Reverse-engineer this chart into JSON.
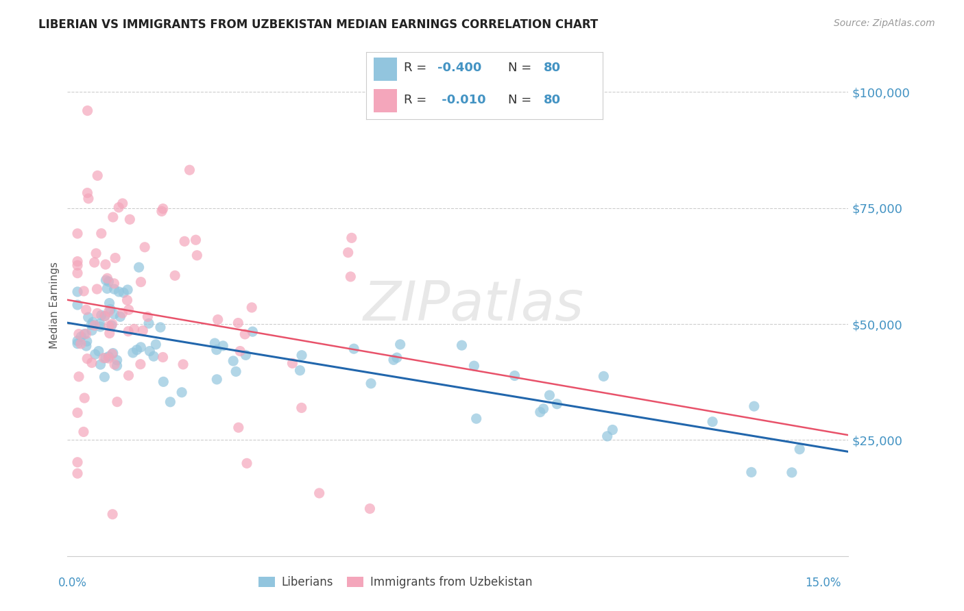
{
  "title": "LIBERIAN VS IMMIGRANTS FROM UZBEKISTAN MEDIAN EARNINGS CORRELATION CHART",
  "source": "Source: ZipAtlas.com",
  "ylabel": "Median Earnings",
  "yticks": [
    25000,
    50000,
    75000,
    100000
  ],
  "ytick_labels": [
    "$25,000",
    "$50,000",
    "$75,000",
    "$100,000"
  ],
  "xlim": [
    -0.001,
    0.155
  ],
  "ylim": [
    0,
    108000
  ],
  "color_blue": "#92c5de",
  "color_pink": "#f4a6bb",
  "color_blue_text": "#4393c3",
  "trendline_blue": "#2166ac",
  "trendline_pink": "#e8526a",
  "background": "#ffffff",
  "watermark": "ZIPatlas",
  "grid_color": "#cccccc",
  "legend_border": "#cccccc",
  "r1_val": "-0.400",
  "r2_val": "-0.010",
  "n_val": "80"
}
